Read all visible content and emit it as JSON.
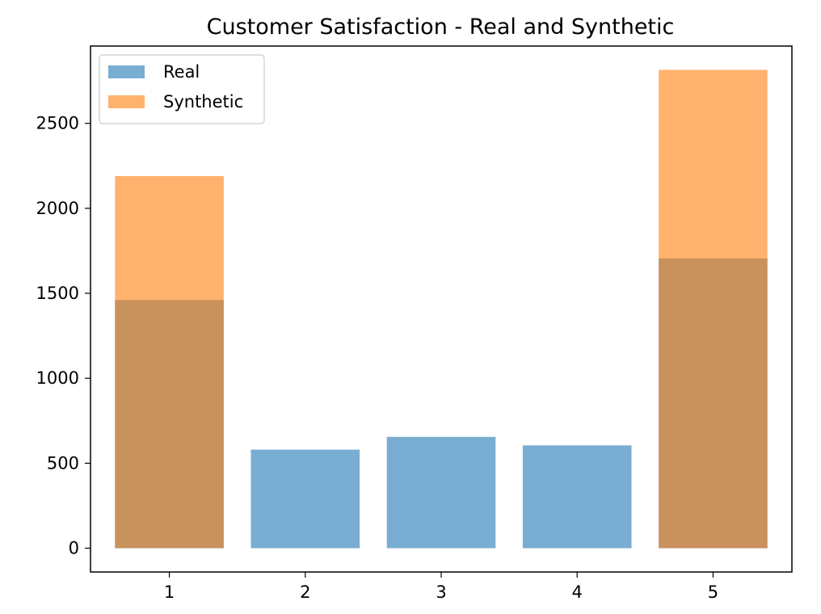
{
  "chart_data": {
    "type": "bar",
    "title": "Customer Satisfaction - Real and Synthetic",
    "xlabel": "",
    "ylabel": "",
    "categories": [
      "1",
      "2",
      "3",
      "4",
      "5"
    ],
    "series": [
      {
        "name": "Real",
        "color": "#1f77b4",
        "opacity": 0.6,
        "values": [
          1460,
          580,
          655,
          605,
          1705
        ]
      },
      {
        "name": "Synthetic",
        "color": "#ff7f0e",
        "opacity": 0.6,
        "values": [
          2190,
          0,
          0,
          0,
          2815
        ]
      }
    ],
    "ylim": [
      -140,
      2955
    ],
    "xlim": [
      0.42,
      5.58
    ],
    "yticks": [
      0,
      500,
      1000,
      1500,
      2000,
      2500
    ],
    "grid": false,
    "legend": "upper left",
    "overlay": true
  }
}
